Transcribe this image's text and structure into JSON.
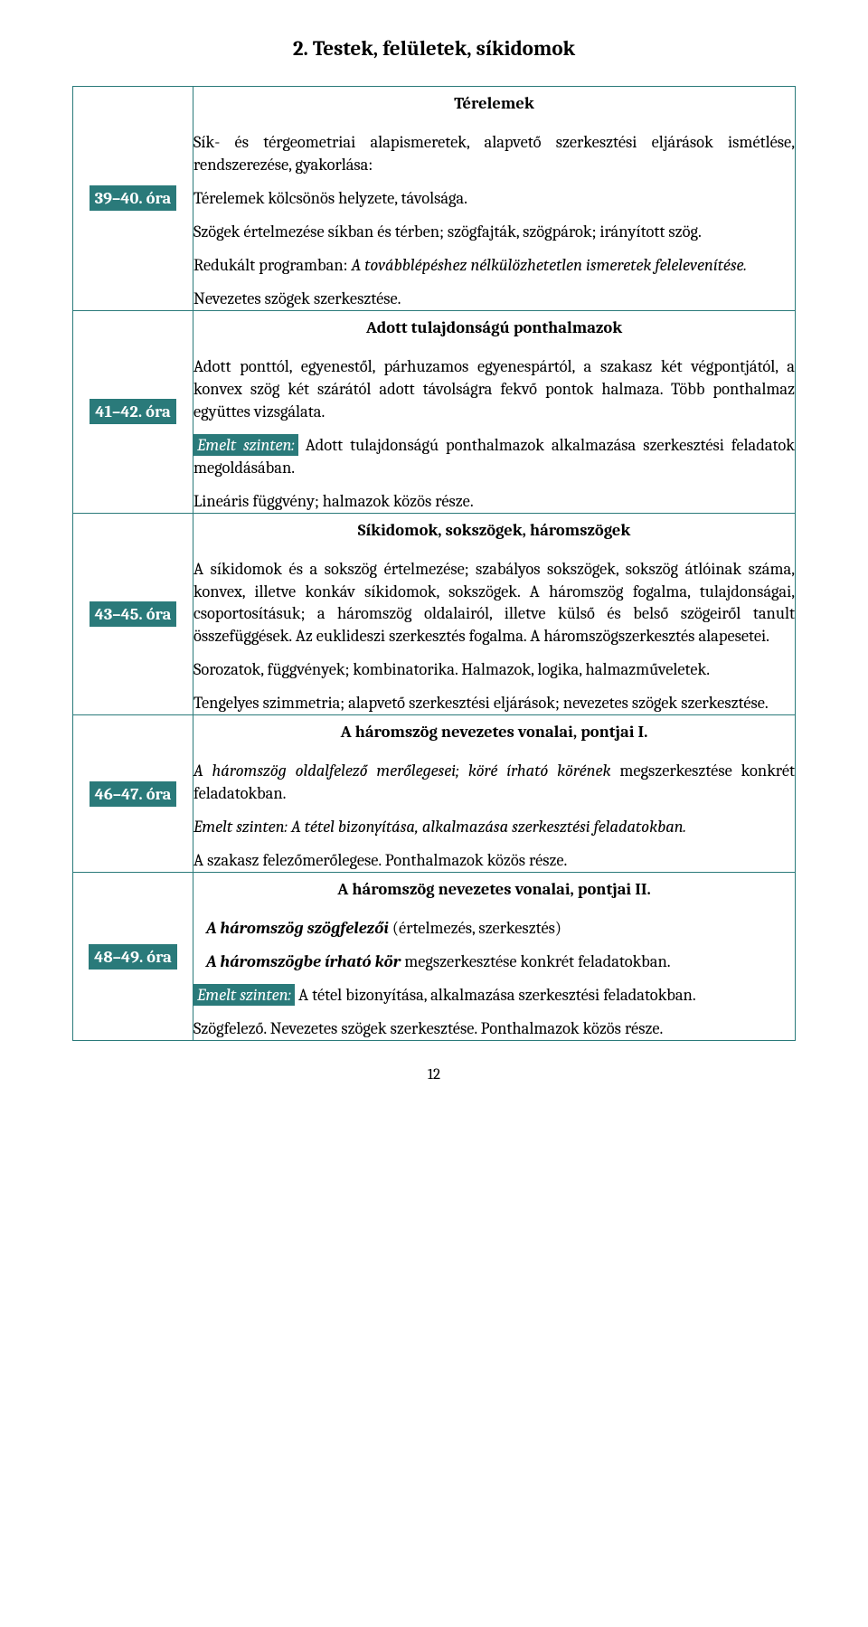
{
  "title": "2. Testek, felületek, síkidomok",
  "pagenum": "12",
  "rows": [
    {
      "badge": "39–40. óra",
      "heading": "Térelemek",
      "paras": [
        {
          "runs": [
            {
              "t": "Sík- és térgeometriai alapismeretek, alapvető szerkesztési eljárások ismétlése, rendszerezése, gyakorlása:"
            }
          ]
        },
        {
          "runs": [
            {
              "t": "Térelemek kölcsönös helyzete, távolsága."
            }
          ]
        },
        {
          "runs": [
            {
              "t": "Szögek értelmezése síkban és térben; szögfajták, szögpárok; irányított szög."
            }
          ]
        },
        {
          "runs": [
            {
              "t": "Redukált programban: ",
              "cls": ""
            },
            {
              "t": "A továbblépéshez nélkülözhetetlen ismeretek felelevenítése.",
              "cls": "italic"
            }
          ]
        },
        {
          "runs": [
            {
              "t": "Nevezetes szögek szerkesztése."
            }
          ]
        }
      ]
    },
    {
      "badge": "41–42. óra",
      "heading": "Adott tulajdonságú ponthalmazok",
      "paras": [
        {
          "runs": [
            {
              "t": "Adott ponttól, egyenestől, párhuzamos egyenespártól, a szakasz két végpontjától, a konvex szög két szárától adott távolságra fekvő pontok halmaza. Több ponthalmaz együttes vizsgálata."
            }
          ]
        },
        {
          "runs": [
            {
              "t": "Emelt szinten:",
              "cls": "hl"
            },
            {
              "t": " Adott tulajdonságú ponthalmazok alkalmazása szerkesztési feladatok megoldásában."
            }
          ]
        },
        {
          "runs": [
            {
              "t": "Lineáris függvény; halmazok közös része."
            }
          ]
        }
      ]
    },
    {
      "badge": "43–45. óra",
      "heading": "Síkidomok, sokszögek, háromszögek",
      "paras": [
        {
          "runs": [
            {
              "t": "A síkidomok és a sokszög értelmezése; szabályos sokszögek, sokszög átlóinak száma, konvex, illetve konkáv síkidomok, sokszögek. A háromszög fogalma, tulajdonságai, csoportosításuk; a háromszög oldalairól, illetve külső és belső szögeiről tanult összefüggések. Az euklideszi szerkesztés fogalma. A háromszögszerkesztés alapesetei."
            }
          ]
        },
        {
          "runs": [
            {
              "t": "Sorozatok, függvények; kombinatorika. Halmazok, logika, halmazműveletek."
            }
          ]
        },
        {
          "runs": [
            {
              "t": "Tengelyes szimmetria; alapvető szerkesztési eljárások; nevezetes szögek szerkesztése."
            }
          ]
        }
      ]
    },
    {
      "badge": "46–47. óra",
      "heading": "A háromszög nevezetes vonalai, pontjai I.",
      "paras": [
        {
          "runs": [
            {
              "t": "A háromszög oldalfelező merőlegesei; köré írható körének ",
              "cls": "italic"
            },
            {
              "t": "megszerkesztése konkrét feladatokban."
            }
          ]
        },
        {
          "runs": [
            {
              "t": "Emelt szinten: A tétel bizonyítása, alkalmazása szerkesztési feladatokban.",
              "cls": "italic"
            }
          ]
        },
        {
          "runs": [
            {
              "t": "A szakasz felezőmerőlegese. Ponthalmazok közös része."
            }
          ]
        }
      ]
    },
    {
      "badge": "48–49. óra",
      "heading": "A háromszög nevezetes vonalai, pontjai II.",
      "paras": [
        {
          "indent": true,
          "runs": [
            {
              "t": "A háromszög szögfelezői",
              "cls": "italic bold"
            },
            {
              "t": " (értelmezés, szerkesztés)"
            }
          ]
        },
        {
          "indent": true,
          "runs": [
            {
              "t": "A háromszögbe írható kör",
              "cls": "italic bold"
            },
            {
              "t": " megszerkesztése konkrét feladatokban."
            }
          ]
        },
        {
          "runs": [
            {
              "t": "Emelt szinten:",
              "cls": "hl"
            },
            {
              "t": " A tétel bizonyítása, alkalmazása szerkesztési feladatokban."
            }
          ]
        },
        {
          "runs": [
            {
              "t": "Szögfelező. Nevezetes szögek szerkesztése. Ponthalmazok közös része."
            }
          ]
        }
      ]
    }
  ]
}
